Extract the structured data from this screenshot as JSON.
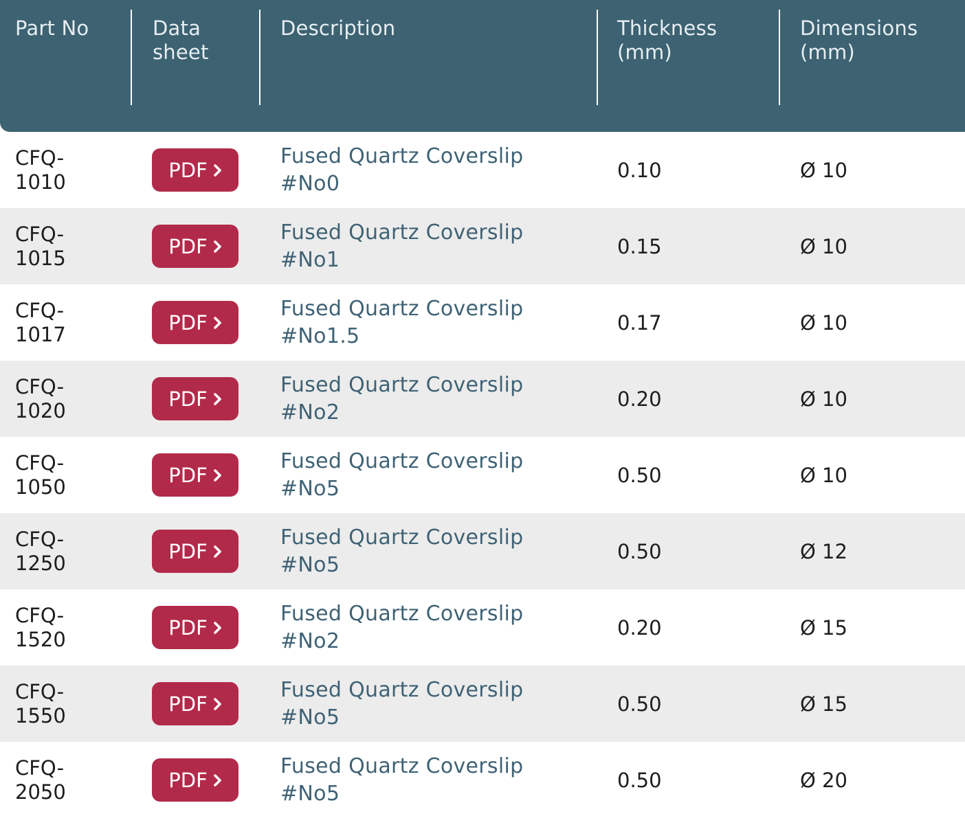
{
  "header": {
    "part_no": "Part No",
    "data_sheet_1": "Data",
    "data_sheet_2": "sheet",
    "description": "Description",
    "thickness_1": "Thickness",
    "thickness_2": "(mm)",
    "dimensions_1": "Dimensions",
    "dimensions_2": "(mm)"
  },
  "pdf_label": "PDF",
  "colors": {
    "header_bg": "#3d6272",
    "pdf_button": "#b22a4a",
    "alt_row": "#ececec",
    "description_text": "#3f6275"
  },
  "rows": [
    {
      "part_a": "CFQ-",
      "part_b": "1010",
      "description": "Fused Quartz Coverslip #No0",
      "thickness": "0.10",
      "dimensions": "Ø 10"
    },
    {
      "part_a": "CFQ-",
      "part_b": "1015",
      "description": "Fused Quartz Coverslip #No1",
      "thickness": "0.15",
      "dimensions": "Ø 10"
    },
    {
      "part_a": "CFQ-",
      "part_b": "1017",
      "description": "Fused Quartz Coverslip #No1.5",
      "thickness": "0.17",
      "dimensions": "Ø 10"
    },
    {
      "part_a": "CFQ-",
      "part_b": "1020",
      "description": "Fused Quartz Coverslip #No2",
      "thickness": "0.20",
      "dimensions": "Ø 10"
    },
    {
      "part_a": "CFQ-",
      "part_b": "1050",
      "description": "Fused Quartz Coverslip #No5",
      "thickness": "0.50",
      "dimensions": "Ø 10"
    },
    {
      "part_a": "CFQ-",
      "part_b": "1250",
      "description": "Fused Quartz Coverslip #No5",
      "thickness": "0.50",
      "dimensions": "Ø 12"
    },
    {
      "part_a": "CFQ-",
      "part_b": "1520",
      "description": "Fused Quartz Coverslip #No2",
      "thickness": "0.20",
      "dimensions": "Ø 15"
    },
    {
      "part_a": "CFQ-",
      "part_b": "1550",
      "description": "Fused Quartz Coverslip #No5",
      "thickness": "0.50",
      "dimensions": "Ø 15"
    },
    {
      "part_a": "CFQ-",
      "part_b": "2050",
      "description": "Fused Quartz Coverslip #No5",
      "thickness": "0.50",
      "dimensions": "Ø 20"
    }
  ]
}
